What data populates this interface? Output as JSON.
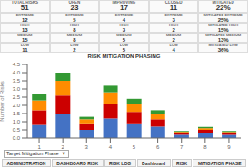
{
  "chart_data": {
    "type": "bar",
    "stacked": true,
    "title": "RISK MITIGATION PHASING",
    "y_label": "Number of Risks",
    "categories": [
      "1",
      "2",
      "3",
      "4",
      "5",
      "6",
      "7",
      "8",
      "9"
    ],
    "series": [
      {
        "color": "#4472c4",
        "values": [
          0.8,
          1.5,
          0.5,
          1.2,
          0.9,
          0.7,
          0.2,
          0.3,
          0.2
        ]
      },
      {
        "color": "#cc0000",
        "values": [
          0.9,
          1.1,
          0.4,
          0.9,
          0.7,
          0.45,
          0.1,
          0.2,
          0.1
        ]
      },
      {
        "color": "#ff8c00",
        "values": [
          0.6,
          0.9,
          0.25,
          0.7,
          0.5,
          0.35,
          0.08,
          0.1,
          0.08
        ]
      },
      {
        "color": "#339933",
        "values": [
          0.4,
          0.5,
          0.15,
          0.4,
          0.3,
          0.2,
          0.05,
          0.08,
          0.05
        ]
      }
    ],
    "ylim": [
      0,
      4.5
    ],
    "yticks": [
      {
        "value": 0,
        "label": "0.0"
      },
      0.5,
      {
        "value": 1,
        "label": "1.0"
      },
      1.5,
      {
        "value": 2,
        "label": "2.0"
      },
      2.5,
      {
        "value": 3,
        "label": "3.0"
      },
      3.5,
      {
        "value": 4,
        "label": "4.0"
      },
      4.5
    ],
    "grid": false,
    "annotations": [
      [
        "TOTAL RISKS",
        "51",
        "OPEN",
        "23",
        "IMPROVING",
        "17",
        "CLOSED",
        "11",
        "MITIGATED",
        "22%"
      ],
      [
        "EXTREME",
        "12",
        "EXTREME",
        "5",
        "EXTREME",
        "4",
        "EXTREME",
        "3",
        "MITIGATED EXTREME",
        "25%"
      ],
      [
        "HIGH",
        "13",
        "HIGH",
        "8",
        "HIGH",
        "3",
        "HIGH",
        "2",
        "MITIGATED HIGH",
        "15%"
      ],
      [
        "MEDIUM",
        "15",
        "MEDIUM",
        "8",
        "MEDIUM",
        "5",
        "MEDIUM",
        "2",
        "MITIGATED MEDIUM",
        "13%"
      ],
      [
        "LOW",
        "11",
        "LOW",
        "2",
        "LOW",
        "5",
        "LOW",
        "4",
        "MITIGATED LOW",
        "36%"
      ],
      [
        "Target Mitigation Phase  ▼"
      ],
      [
        "ADMINISTRATION",
        "DASHBOARD RISK",
        "RISK LOG",
        "Dashboard",
        "RISK",
        "MITIGATION PHASE"
      ]
    ]
  }
}
